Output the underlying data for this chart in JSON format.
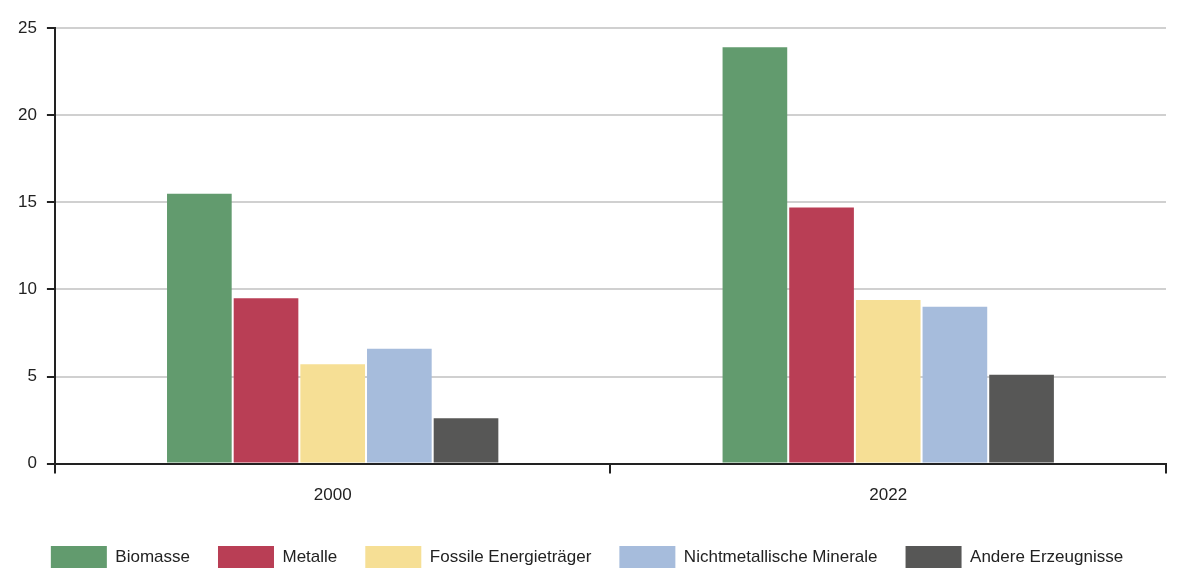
{
  "chart_data": {
    "type": "bar",
    "categories": [
      "2000",
      "2022"
    ],
    "series": [
      {
        "name": "Biomasse",
        "color": "#629b6e",
        "values": [
          15.5,
          23.9
        ]
      },
      {
        "name": "Metalle",
        "color": "#b93e55",
        "values": [
          9.5,
          14.7
        ]
      },
      {
        "name": "Fossile Energieträger",
        "color": "#f6df95",
        "values": [
          5.7,
          9.4
        ]
      },
      {
        "name": "Nichtmetallische Minerale",
        "color": "#a6bcdc",
        "values": [
          6.6,
          9.0
        ]
      },
      {
        "name": "Andere Erzeugnisse",
        "color": "#575756",
        "values": [
          2.6,
          5.1
        ]
      }
    ],
    "ylim": [
      0,
      25
    ],
    "yticks": [
      0,
      5,
      10,
      15,
      20,
      25
    ],
    "grid": "y",
    "legend": "bottom"
  }
}
